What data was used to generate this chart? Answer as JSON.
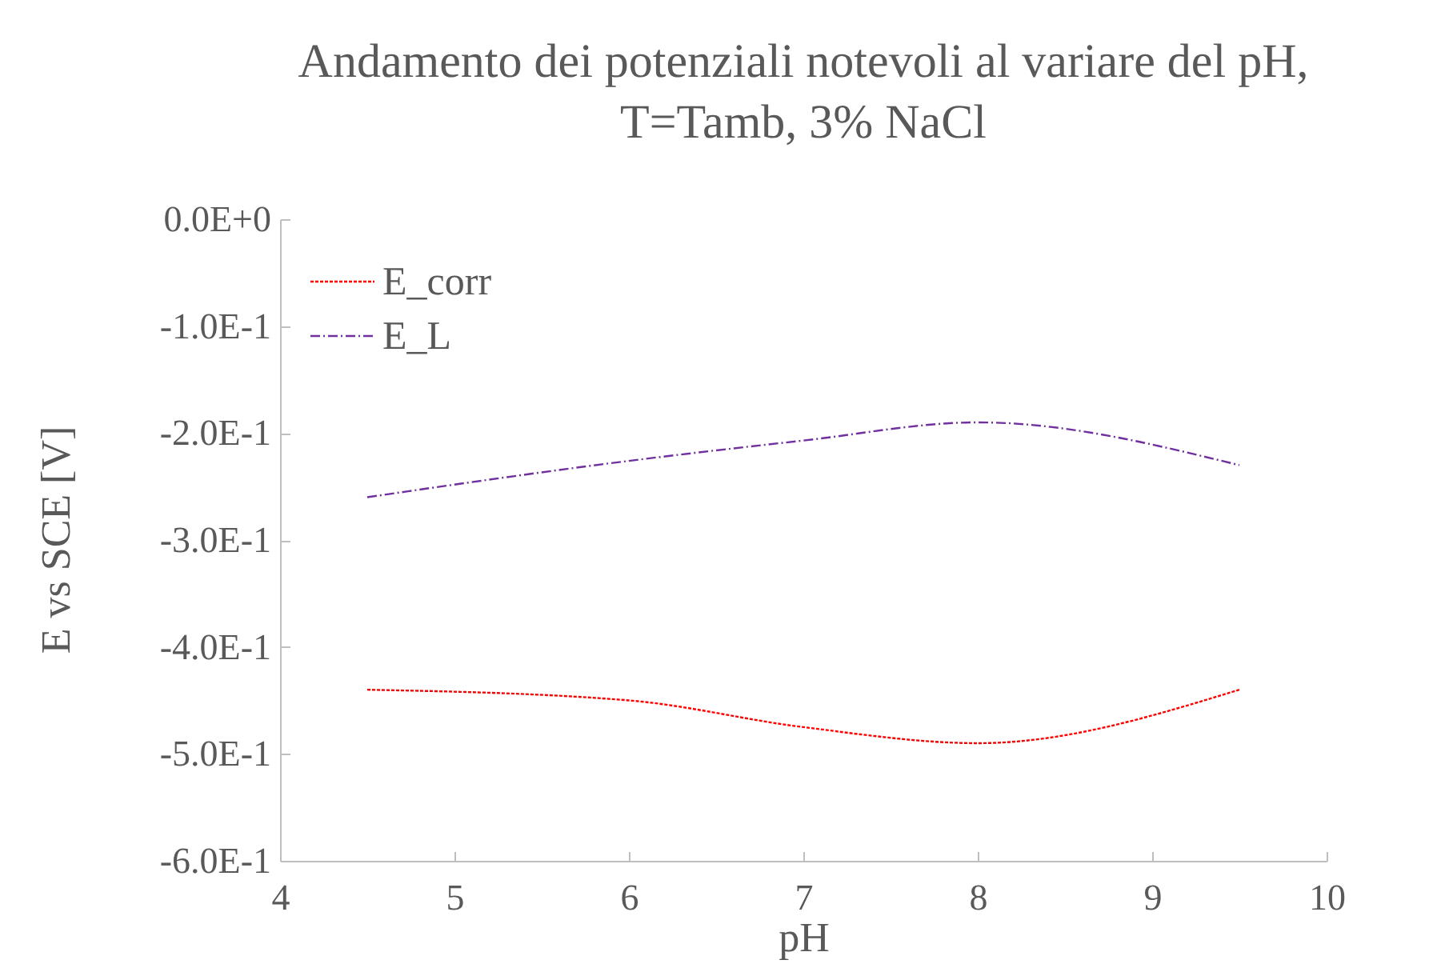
{
  "chart_data": {
    "type": "line",
    "title": "Andamento dei potenziali notevoli al variare del pH, T=Tamb, 3% NaCl",
    "xlabel": "pH",
    "ylabel": "E vs SCE [V]",
    "x": [
      4.5,
      6,
      7,
      8,
      9.5
    ],
    "series": [
      {
        "name": "E_corr",
        "color": "#ff0000",
        "line_style": "dotted",
        "values": [
          -0.44,
          -0.45,
          -0.475,
          -0.49,
          -0.44
        ]
      },
      {
        "name": "E_L",
        "color": "#7030a0",
        "line_style": "dashed",
        "values": [
          -0.26,
          -0.226,
          -0.207,
          -0.19,
          -0.23
        ]
      }
    ],
    "xlim": [
      4,
      10
    ],
    "xticks": [
      4,
      5,
      6,
      7,
      8,
      9,
      10
    ],
    "ylim": [
      -0.6,
      0
    ],
    "yticks": [
      {
        "value": -0.6,
        "label": "-6.0E-1"
      },
      {
        "value": -0.5,
        "label": "-5.0E-1"
      },
      {
        "value": -0.4,
        "label": "-4.0E-1"
      },
      {
        "value": -0.3,
        "label": "-3.0E-1"
      },
      {
        "value": -0.2,
        "label": "-2.0E-1"
      },
      {
        "value": -0.1,
        "label": "-1.0E-1"
      },
      {
        "value": 0,
        "label": "0.0E+0"
      }
    ],
    "grid": false,
    "legend": "top left",
    "marker": "none"
  }
}
